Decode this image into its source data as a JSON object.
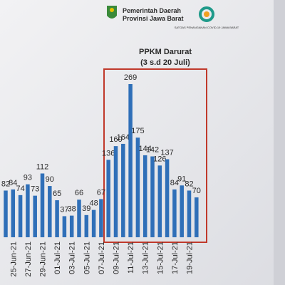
{
  "header": {
    "org_line1": "Pemerintah Daerah",
    "org_line2": "Provinsi Jawa Barat",
    "task_force": "SATGAS PENANGANAN COVID-19 JAWA BARAT"
  },
  "chart_data": {
    "type": "bar",
    "annotation": {
      "title": "PPKM Darurat",
      "subtitle": "(3 s.d 20 Juli)"
    },
    "categories": [
      null,
      "25-Jun-21",
      null,
      "27-Jun-21",
      null,
      "29-Jun-21",
      null,
      "01-Jul-21",
      null,
      "03-Jul-21",
      null,
      "05-Jul-21",
      null,
      "07-Jul-21",
      null,
      "09-Jul-21",
      null,
      "11-Jul-21",
      null,
      "13-Jul-21",
      null,
      "15-Jul-21",
      null,
      "17-Jul-21",
      null,
      "19-Jul-21",
      null
    ],
    "values": [
      82,
      84,
      74,
      93,
      73,
      112,
      90,
      65,
      37,
      38,
      66,
      39,
      48,
      67,
      136,
      160,
      164,
      269,
      175,
      144,
      142,
      126,
      137,
      84,
      91,
      82,
      70
    ],
    "color": "#2f6fb8"
  }
}
